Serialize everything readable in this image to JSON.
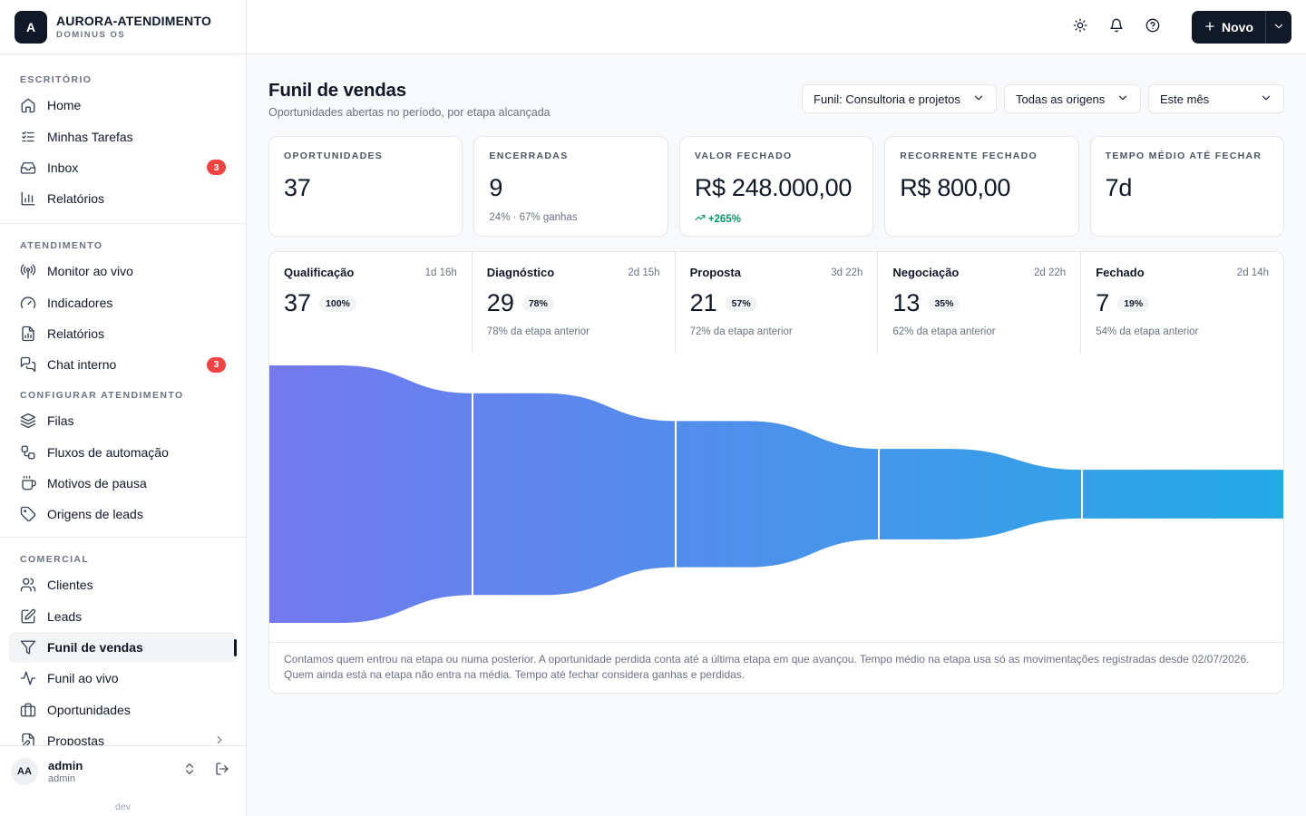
{
  "brand": {
    "logo_letter": "A",
    "name": "AURORA-ATENDIMENTO",
    "subtitle": "DOMINUS OS"
  },
  "sidebar": {
    "sections": [
      {
        "label": "ESCRITÓRIO",
        "items": [
          {
            "label": "Home",
            "icon": "home-icon"
          },
          {
            "label": "Minhas Tarefas",
            "icon": "tasks-icon"
          },
          {
            "label": "Inbox",
            "icon": "inbox-icon",
            "badge": "3"
          },
          {
            "label": "Relatórios",
            "icon": "bar-chart-icon"
          }
        ]
      },
      {
        "label": "ATENDIMENTO",
        "items": [
          {
            "label": "Monitor ao vivo",
            "icon": "broadcast-icon"
          },
          {
            "label": "Indicadores",
            "icon": "gauge-icon"
          },
          {
            "label": "Relatórios",
            "icon": "document-chart-icon"
          },
          {
            "label": "Chat interno",
            "icon": "chat-icon",
            "badge": "3"
          }
        ]
      },
      {
        "label": "CONFIGURAR ATENDIMENTO",
        "items": [
          {
            "label": "Filas",
            "icon": "layers-icon"
          },
          {
            "label": "Fluxos de automação",
            "icon": "workflow-icon"
          },
          {
            "label": "Motivos de pausa",
            "icon": "coffee-icon"
          },
          {
            "label": "Origens de leads",
            "icon": "tag-icon"
          }
        ]
      },
      {
        "label": "COMERCIAL",
        "items": [
          {
            "label": "Clientes",
            "icon": "users-icon"
          },
          {
            "label": "Leads",
            "icon": "edit-icon"
          },
          {
            "label": "Funil de vendas",
            "icon": "filter-icon",
            "active": true
          },
          {
            "label": "Funil ao vivo",
            "icon": "activity-icon"
          },
          {
            "label": "Oportunidades",
            "icon": "briefcase-icon"
          },
          {
            "label": "Propostas",
            "icon": "file-edit-icon",
            "chevron": true
          }
        ]
      }
    ]
  },
  "user": {
    "initials": "AA",
    "name": "admin",
    "role": "admin"
  },
  "env_label": "dev",
  "topbar": {
    "new_label": "Novo"
  },
  "page": {
    "title": "Funil de vendas",
    "subtitle": "Oportunidades abertas no período, por etapa alcançada",
    "filters": [
      "Funil: Consultoria e projetos",
      "Todas as origens",
      "Este mês"
    ]
  },
  "kpis": [
    {
      "label": "OPORTUNIDADES",
      "value": "37",
      "note": ""
    },
    {
      "label": "ENCERRADAS",
      "value": "9",
      "note": "24% · 67% ganhas"
    },
    {
      "label": "VALOR FECHADO",
      "value": "R$ 248.000,00",
      "note": "+265%",
      "note_up": true
    },
    {
      "label": "RECORRENTE FECHADO",
      "value": "R$ 800,00",
      "note": ""
    },
    {
      "label": "TEMPO MÉDIO ATÉ FECHAR",
      "value": "7d",
      "note": ""
    }
  ],
  "stages": [
    {
      "name": "Qualificação",
      "time": "1d 16h",
      "count": 37,
      "pct": "100%",
      "note": ""
    },
    {
      "name": "Diagnóstico",
      "time": "2d 15h",
      "count": 29,
      "pct": "78%",
      "note": "78% da etapa anterior"
    },
    {
      "name": "Proposta",
      "time": "3d 22h",
      "count": 21,
      "pct": "57%",
      "note": "72% da etapa anterior"
    },
    {
      "name": "Negociação",
      "time": "2d 22h",
      "count": 13,
      "pct": "35%",
      "note": "62% da etapa anterior"
    },
    {
      "name": "Fechado",
      "time": "2d 14h",
      "count": 7,
      "pct": "19%",
      "note": "54% da etapa anterior"
    }
  ],
  "colors": {
    "funnel_start": "#7479ef",
    "funnel_end": "#23aae6",
    "badge": "#ef4444",
    "up": "#059669"
  },
  "footnote": "Contamos quem entrou na etapa ou numa posterior. A oportunidade perdida conta até a última etapa em que avançou. Tempo médio na etapa usa só as movimentações registradas desde 02/07/2026. Quem ainda está na etapa não entra na média. Tempo até fechar considera ganhas e perdidas."
}
